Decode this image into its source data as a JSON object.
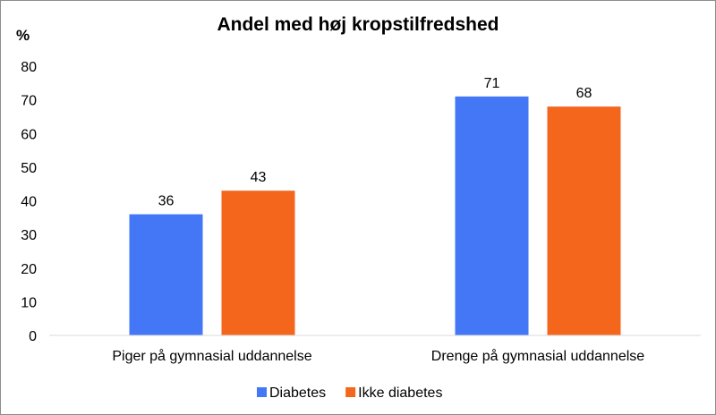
{
  "chart_data": {
    "type": "bar",
    "title": "Andel med høj kropstilfredshed",
    "ylabel": "%",
    "xlabel": "",
    "categories": [
      "Piger på gymnasial uddannelse",
      "Drenge på gymnasial uddannelse"
    ],
    "series": [
      {
        "name": "Diabetes",
        "color": "#4377f6",
        "values": [
          36,
          71
        ]
      },
      {
        "name": "Ikke diabetes",
        "color": "#f4661b",
        "values": [
          43,
          68
        ]
      }
    ],
    "ylim": [
      0,
      80
    ],
    "yticks": [
      0,
      10,
      20,
      30,
      40,
      50,
      60,
      70,
      80
    ],
    "grid": false,
    "data_labels": true,
    "legend_position": "bottom"
  }
}
